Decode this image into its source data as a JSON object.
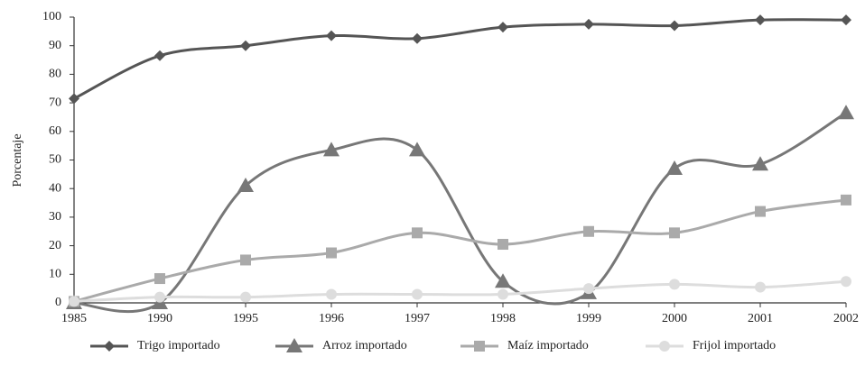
{
  "chart_data": {
    "type": "line",
    "y_label": "Porcentaje",
    "categories": [
      "1985",
      "1990",
      "1995",
      "1996",
      "1997",
      "1998",
      "1999",
      "2000",
      "2001",
      "2002"
    ],
    "series": [
      {
        "name": "Trigo importado",
        "color": "#555555",
        "marker": "diamond",
        "values": [
          71.5,
          86.5,
          90,
          93.5,
          92.5,
          96.5,
          97.5,
          97,
          99,
          99
        ]
      },
      {
        "name": "Arroz importado",
        "color": "#777777",
        "marker": "triangle",
        "values": [
          0,
          0,
          41,
          53.5,
          53.5,
          7.5,
          3.5,
          47,
          48.5,
          66.5
        ]
      },
      {
        "name": "Maíz importado",
        "color": "#aaaaaa",
        "marker": "square",
        "values": [
          0.5,
          8.5,
          15,
          17.5,
          24.5,
          20.5,
          25,
          24.5,
          32,
          36
        ]
      },
      {
        "name": "Frijol importado",
        "color": "#dddddd",
        "marker": "circle",
        "values": [
          0.5,
          2,
          2,
          3,
          3,
          3,
          5,
          6.5,
          5.5,
          7.5
        ]
      }
    ],
    "ylim": [
      0,
      100
    ],
    "yticks": [
      0,
      10,
      20,
      30,
      40,
      50,
      60,
      70,
      80,
      90,
      100
    ],
    "grid": false,
    "legend": "bottom"
  }
}
